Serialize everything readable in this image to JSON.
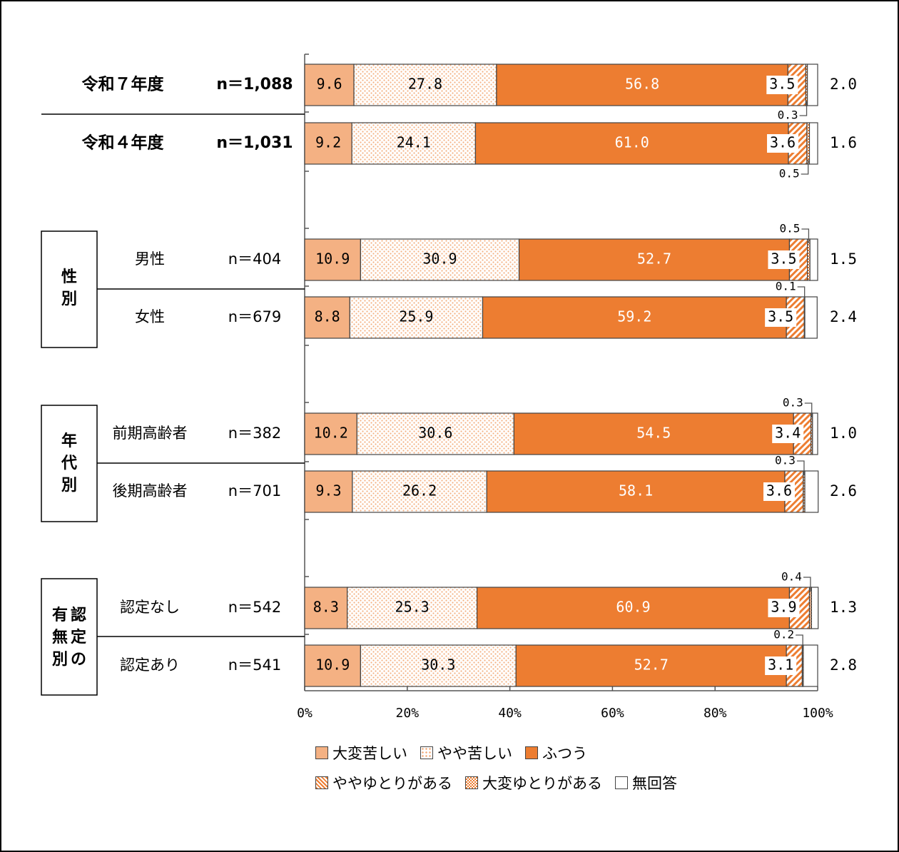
{
  "chart_data": {
    "type": "bar",
    "orientation": "horizontal",
    "stacked": true,
    "percent_stacked": true,
    "xlim": [
      0,
      100
    ],
    "xticks": [
      "0%",
      "20%",
      "40%",
      "60%",
      "80%",
      "100%"
    ],
    "series": [
      {
        "name": "大変苦しい",
        "color": "#F4B183",
        "pattern": "solid"
      },
      {
        "name": "やや苦しい",
        "color": "#F4B183",
        "pattern": "dots"
      },
      {
        "name": "ふつう",
        "color": "#ED7D31",
        "pattern": "solid"
      },
      {
        "name": "ややゆとりがある",
        "color": "#ED7D31",
        "pattern": "diagonal"
      },
      {
        "name": "大変ゆとりがある",
        "color": "#ED7D31",
        "pattern": "crosshatch"
      },
      {
        "name": "無回答",
        "color": "#FFFFFF",
        "pattern": "solid"
      }
    ],
    "groups": [
      {
        "label": "",
        "rows": [
          {
            "label": "令和７年度",
            "n": "n＝1,088",
            "bold": true,
            "values": [
              9.6,
              27.8,
              56.8,
              3.5,
              0.3,
              2.0
            ],
            "labels": [
              "9.6",
              "27.8",
              "56.8",
              "3.5",
              "0.3",
              "2.0"
            ]
          },
          {
            "label": "令和４年度",
            "n": "n＝1,031",
            "bold": true,
            "values": [
              9.2,
              24.1,
              61.0,
              3.6,
              0.5,
              1.6
            ],
            "labels": [
              "9.2",
              "24.1",
              "61.0",
              "3.6",
              "0.5",
              "1.6"
            ]
          }
        ]
      },
      {
        "label": "性別",
        "rows": [
          {
            "label": "男性",
            "n": "n＝404",
            "bold": false,
            "values": [
              10.9,
              30.9,
              52.7,
              3.5,
              0.5,
              1.5
            ],
            "labels": [
              "10.9",
              "30.9",
              "52.7",
              "3.5",
              "0.5",
              "1.5"
            ]
          },
          {
            "label": "女性",
            "n": "n＝679",
            "bold": false,
            "values": [
              8.8,
              25.9,
              59.2,
              3.5,
              0.1,
              2.4
            ],
            "labels": [
              "8.8",
              "25.9",
              "59.2",
              "3.5",
              "0.1",
              "2.4"
            ]
          }
        ]
      },
      {
        "label": "年代別",
        "rows": [
          {
            "label": "前期高齢者",
            "n": "n＝382",
            "bold": false,
            "values": [
              10.2,
              30.6,
              54.5,
              3.4,
              0.3,
              1.0
            ],
            "labels": [
              "10.2",
              "30.6",
              "54.5",
              "3.4",
              "0.3",
              "1.0"
            ]
          },
          {
            "label": "後期高齢者",
            "n": "n＝701",
            "bold": false,
            "values": [
              9.3,
              26.2,
              58.1,
              3.6,
              0.3,
              2.6
            ],
            "labels": [
              "9.3",
              "26.2",
              "58.1",
              "3.6",
              "0.3",
              "2.6"
            ]
          }
        ]
      },
      {
        "label": "有認無定別の",
        "rows": [
          {
            "label": "認定なし",
            "n": "n＝542",
            "bold": false,
            "values": [
              8.3,
              25.3,
              60.9,
              3.9,
              0.4,
              1.3
            ],
            "labels": [
              "8.3",
              "25.3",
              "60.9",
              "3.9",
              "0.4",
              "1.3"
            ]
          },
          {
            "label": "認定あり",
            "n": "n＝541",
            "bold": false,
            "values": [
              10.9,
              30.3,
              52.7,
              3.1,
              0.2,
              2.8
            ],
            "labels": [
              "10.9",
              "30.3",
              "52.7",
              "3.1",
              "0.2",
              "2.8"
            ]
          }
        ]
      }
    ]
  },
  "legend": {
    "row1": [
      {
        "label": "大変苦しい",
        "icon": "solid-light-orange-swatch"
      },
      {
        "label": "やや苦しい",
        "icon": "dotted-swatch"
      },
      {
        "label": "ふつう",
        "icon": "solid-orange-swatch"
      }
    ],
    "row2": [
      {
        "label": "ややゆとりがある",
        "icon": "diagonal-hatch-swatch"
      },
      {
        "label": "大変ゆとりがある",
        "icon": "crosshatch-swatch"
      },
      {
        "label": "無回答",
        "icon": "white-swatch"
      }
    ]
  }
}
